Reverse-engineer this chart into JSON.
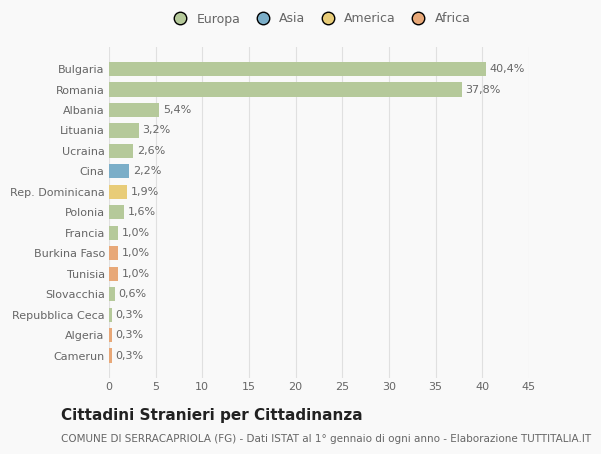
{
  "categories": [
    "Camerun",
    "Algeria",
    "Repubblica Ceca",
    "Slovacchia",
    "Tunisia",
    "Burkina Faso",
    "Francia",
    "Polonia",
    "Rep. Dominicana",
    "Cina",
    "Ucraina",
    "Lituania",
    "Albania",
    "Romania",
    "Bulgaria"
  ],
  "values": [
    0.3,
    0.3,
    0.3,
    0.6,
    1.0,
    1.0,
    1.0,
    1.6,
    1.9,
    2.2,
    2.6,
    3.2,
    5.4,
    37.8,
    40.4
  ],
  "labels": [
    "0,3%",
    "0,3%",
    "0,3%",
    "0,6%",
    "1,0%",
    "1,0%",
    "1,0%",
    "1,6%",
    "1,9%",
    "2,2%",
    "2,6%",
    "3,2%",
    "5,4%",
    "37,8%",
    "40,4%"
  ],
  "continents": [
    "Africa",
    "Africa",
    "Europa",
    "Europa",
    "Africa",
    "Africa",
    "Europa",
    "Europa",
    "America",
    "Asia",
    "Europa",
    "Europa",
    "Europa",
    "Europa",
    "Europa"
  ],
  "colors": {
    "Europa": "#b5c99a",
    "Asia": "#7baec8",
    "America": "#e8cc78",
    "Africa": "#e8a878"
  },
  "legend_order": [
    "Europa",
    "Asia",
    "America",
    "Africa"
  ],
  "legend_colors": [
    "#b5c99a",
    "#7baec8",
    "#e8cc78",
    "#e8a878"
  ],
  "title": "Cittadini Stranieri per Cittadinanza",
  "subtitle": "COMUNE DI SERRACAPRIOLA (FG) - Dati ISTAT al 1° gennaio di ogni anno - Elaborazione TUTTITALIA.IT",
  "xlim": [
    0,
    45
  ],
  "xticks": [
    0,
    5,
    10,
    15,
    20,
    25,
    30,
    35,
    40,
    45
  ],
  "background_color": "#f9f9f9",
  "grid_color": "#e0e0e0",
  "bar_height": 0.7,
  "title_fontsize": 11,
  "subtitle_fontsize": 7.5,
  "tick_fontsize": 8,
  "label_fontsize": 8,
  "legend_fontsize": 9
}
